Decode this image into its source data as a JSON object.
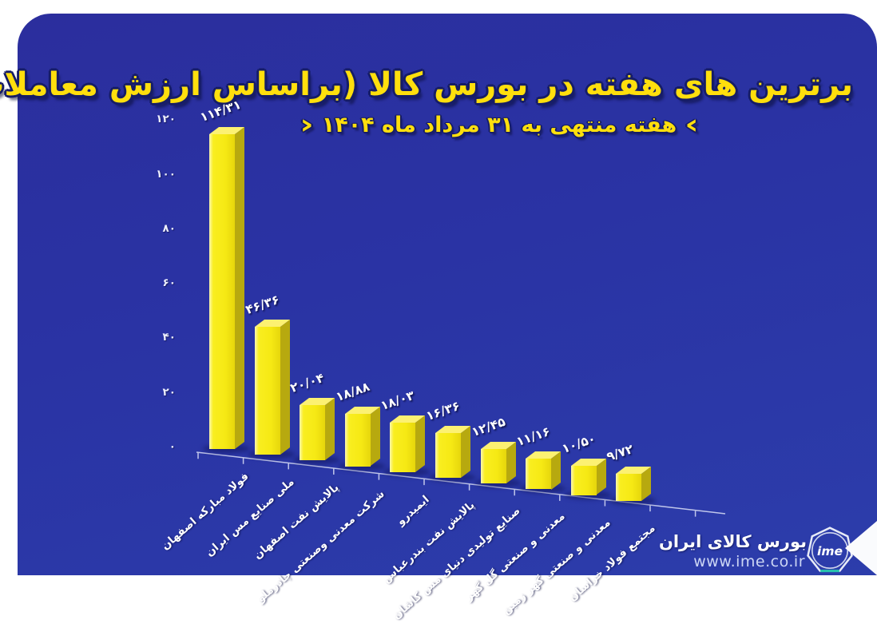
{
  "page": {
    "canvas_bg": "#ffffff",
    "panel_bg_top": "#2b2e9d",
    "panel_bg_bottom": "#2c3dab",
    "accent_color": "#ffdf0d"
  },
  "header": {
    "title": "برترین های هفته در بورس کالا (براساس ارزش معاملات)",
    "subtitle": "هفته منتهی به ۳۱ مرداد ماه ۱۴۰۴",
    "subtitle_ornament_left": "›",
    "subtitle_ornament_right": "‹"
  },
  "chart_data": {
    "type": "bar",
    "title": "برترین های هفته در بورس کالا (براساس ارزش معاملات)",
    "subtitle": "هفته منتهی به ۳۱ مرداد ماه ۱۴۰۴",
    "style": "3d-column",
    "grid": "off",
    "legend": "none",
    "ylim": [
      0,
      120
    ],
    "ytick_values": [
      0,
      20,
      40,
      60,
      80,
      100,
      120
    ],
    "ytick_labels": [
      "۰",
      "۲۰",
      "۴۰",
      "۶۰",
      "۸۰",
      "۱۰۰",
      "۱۲۰"
    ],
    "categories": [
      "فولاد مبارکه اصفهان",
      "ملی صنایع مس ایران",
      "پالایش نفت اصفهان",
      "شرکت معدنی وصنعتی چادرملو",
      "ایمیدرو",
      "پالایش نفت بندرعباس",
      "صنایع تولیدی دنیای مس کاشان",
      "معدنی و صنعتی گل گهر",
      "معدنی و صنعتی گهر زمین",
      "مجتمع فولاد خراسان"
    ],
    "values": [
      114.31,
      46.36,
      20.04,
      18.88,
      18.03,
      16.36,
      12.45,
      11.16,
      10.5,
      9.72
    ],
    "value_labels": [
      "۱۱۴/۳۱",
      "۴۶/۳۶",
      "۲۰/۰۴",
      "۱۸/۸۸",
      "۱۸/۰۳",
      "۱۶/۳۶",
      "۱۲/۴۵",
      "۱۱/۱۶",
      "۱۰/۵۰",
      "۹/۷۲"
    ],
    "bar_front_color": "#f6e914",
    "bar_side_color": "#b7a90f",
    "bar_top_color": "#fcf172",
    "label_color": "#ffffff",
    "axis_color": "#c9cfee"
  },
  "footer": {
    "brand": "بورس کالای ایران",
    "website": "www.ime.co.ir",
    "logo_text": "ime"
  }
}
